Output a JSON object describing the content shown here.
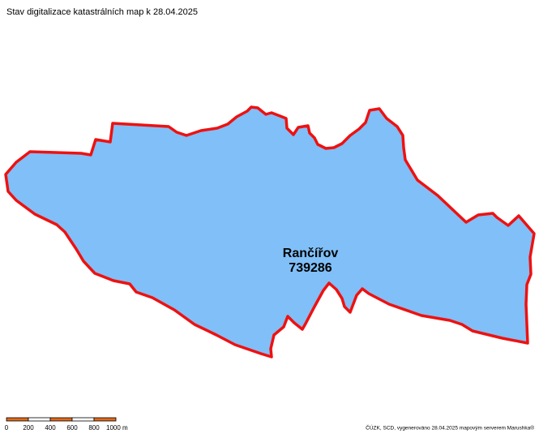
{
  "header": {
    "title": "Stav digitalizace katastrálních map k 28.04.2025"
  },
  "feature": {
    "name": "Rančířov",
    "code": "739286"
  },
  "scale_bar": {
    "labels": [
      "0",
      "200",
      "400",
      "600",
      "800",
      "1000 m"
    ]
  },
  "footer": {
    "credit": "ČÚZK, SCD, vygenerováno 28.04.2025 mapovým serverem Marushka®"
  }
}
